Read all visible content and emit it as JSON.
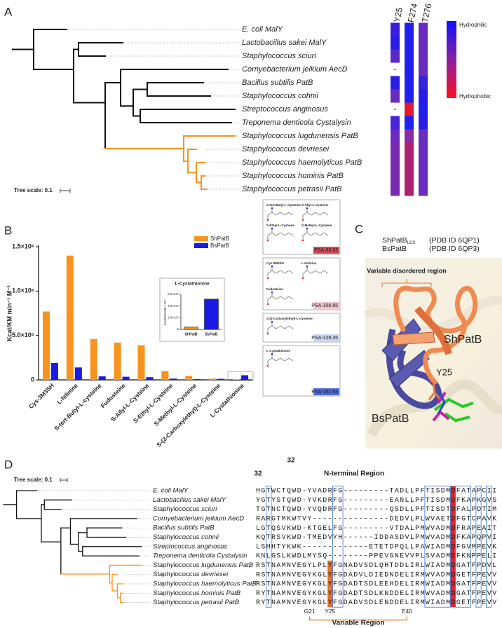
{
  "panel_labels": [
    "A",
    "B",
    "C",
    "D"
  ],
  "panel_a": {
    "species": [
      "E. coli MalY",
      "Lactobacillus sakei MalY",
      "Staphylococcus sciuri",
      "Cornyebacterium jeikium AecD",
      "Bacillus subtilis PatB",
      "Staphylococcus cohnii",
      "Streptococcus anginosus",
      "Treponema denticola Cystalysin",
      "Staphylococcus lugdunensis PatB",
      "Staphylococcus devriesei",
      "Staphylococcus haemolyticus PatB",
      "Staphylococcus hominis PatB",
      "Staphylococcus petrasii PatB"
    ],
    "columns": [
      "Y25",
      "F274",
      "T276"
    ],
    "cells": [
      [
        "#3a1ee0",
        "#2020f0",
        "#6a2cc0"
      ],
      [
        "#2a1ce8",
        "#2020f0",
        "#6a2cc0"
      ],
      [
        "#5a28c8",
        "#2020f0",
        "#6a2cc0"
      ],
      [
        "-",
        "#2020f0",
        "#6a2cc0"
      ],
      [
        "#2a1ce8",
        "#2020f0",
        "#3424e0"
      ],
      [
        "#6a2cc0",
        "#2020f0",
        "#2a1ce8"
      ],
      [
        "-",
        "#e01a30",
        "#2020f0"
      ],
      [
        "#4a24d8",
        "#2020f0",
        "#2a1ce8"
      ],
      [
        "#6a2cc0",
        "#8a2aa0",
        "#6a2cc0"
      ],
      [
        "#7a2ab0",
        "#b02070",
        "#6a2cc0"
      ],
      [
        "#7a2ab0",
        "#b02070",
        "#6a2cc0"
      ],
      [
        "#7a2ab0",
        "#b02070",
        "#6a2cc0"
      ],
      [
        "#7a2ab0",
        "#b02070",
        "#6a2cc0"
      ]
    ],
    "colorbar": {
      "top": "Hydrophilic",
      "bottom": "Hydrophobic"
    },
    "tree_scale": "Tree scale: 0.1"
  },
  "chart_data": [
    {
      "type": "bar",
      "y_label": "Kcat/KM min⁻¹ M⁻¹",
      "categories": [
        "Cys-3M3SH",
        "L-felinine",
        "S-tert-Butyl-L-cysteine",
        "Fudosteine",
        "S-Allyl-L-Cysteine",
        "S-Ethyl-L-Cysteine",
        "S-Methyl-L-Cysteine",
        "S-(2-Carboxylethyl)-L-Cysteine",
        "L-Cystathionine"
      ],
      "series": [
        {
          "name": "ShPatB",
          "color": "#f7931e",
          "values": [
            770000,
            1400000,
            460000,
            420000,
            390000,
            100000,
            45000,
            15000,
            4500
          ]
        },
        {
          "name": "BsPatB",
          "color": "#1a1ae6",
          "values": [
            190000,
            140000,
            40000,
            35000,
            30000,
            15000,
            8000,
            12000,
            52000
          ]
        }
      ],
      "ylim": [
        0,
        1500000
      ],
      "yticks": [
        0,
        {
          "value": 500000,
          "label": "5.0×10⁵"
        },
        {
          "value": 1000000,
          "label": "1.0×10⁶"
        },
        {
          "value": 1500000,
          "label": "1.5×10⁶"
        }
      ]
    },
    {
      "type": "bar",
      "title": "L-Cystathionine",
      "y_label": "Kcat/KM min⁻¹ M⁻¹",
      "categories": [
        "ShPatB",
        "BsPatB"
      ],
      "values": [
        4500,
        52000
      ],
      "colors": [
        "#f7931e",
        "#1a1ae6"
      ],
      "ylim": [
        0,
        60000
      ],
      "yticks": [
        0,
        {
          "value": 20000,
          "label": "2.0×10⁴"
        },
        {
          "value": 40000,
          "label": "4.0×10⁴"
        },
        {
          "value": 60000,
          "label": "6.0×10⁴"
        }
      ]
    }
  ],
  "structures": [
    {
      "names": [
        "S-tert-Butyl-L-Cysteine",
        "S-Allyl-L-Cysteine",
        "S-Ethyl-L-Cysteine",
        "S-Methyl-L-Cysteine"
      ],
      "psa": "PSA-88.62",
      "color": "#d84a58"
    },
    {
      "names": [
        "Cys-3M3SH",
        "L-Felinine",
        "Fudosteine"
      ],
      "psa": "PSA-108.85",
      "color": "#f0c4cc"
    },
    {
      "names": [
        "S-(2-Carboxylethyl)-L-Cysteine"
      ],
      "psa": "PSA-129.35",
      "color": "#c8d6f2"
    },
    {
      "names": [
        "L-Cystathionine"
      ],
      "psa": "PSA-151.94",
      "color": "#4a68d0"
    }
  ],
  "panel_c": {
    "legend": [
      {
        "name": "ShPatB",
        "sub": "LCS",
        "pdb": "(PDB ID 6QP1)",
        "color": "#f08a50"
      },
      {
        "name": "BsPatB",
        "pdb": "(PDB ID 6QP3)",
        "color": "#4a4aa0"
      }
    ],
    "region": "Variable disordered region",
    "labels": {
      "sh": "ShPatB",
      "bs": "BsPatB",
      "residue": "Y25"
    }
  },
  "panel_d": {
    "tree_scale": "Tree scale: 0.1",
    "species": [
      "E. coli MalY",
      "Lactobacillus sakei MalY",
      "Staphylococcus sciuri",
      "Cornyebacterium jeikium AecD",
      "Bacillus subtilis PatB",
      "Staphylococcus cohnii",
      "Streptococcus anginosus",
      "Treponema denticola Cystalysin",
      "Staphylococcus lugdunensis PatB",
      "Staphylococcus devriesei",
      "Staphylococcus haemolyticus PatB",
      "Staphylococcus hominis PatB",
      "Staphylococcus petrasii PatB"
    ],
    "sequences": [
      "HGTWCTQWD-YVADRFG---------TADLLPFTISDMDFATAPCII",
      "YGTYSTQWD-YVKDRFG---------EANLLPFTISDMDFKAPKGVS",
      "TGTNCTQWD-YVQDRFG---------QSDLLPFTISDTDFALPDTIM",
      "RARGTMKWTVY---------------DEDVLPLWVAETDFGTCPAVK",
      "LGTQSVKWD-KTGELFG---------VTDALPMWVADMDFRAPEAIT",
      "KQTRSVKWD-TMEDVYH------IDDASDVLPMWVADMDFKAPQPVI",
      "LSHHTYKWK-------------ETETDPQLLPAWIADMDFGVMPEVK",
      "KNLGSLKWDLMYSQ--------PPEVGNEVVPLSVADMEFKNPPELI",
      "RSTNAMNVEGYLPLYFGNADVSDLQHTDDLIRLWIADMDGATFPDVL",
      "RSTNAMNVEGYKGLYFGDADVLDIEDNDELIRMWVADMDGETFPEVV",
      "RSTNAMNVEGYKGLYFGDADTSDLEEHDELIRMWIADMDGATFPEVV",
      "RYTNAMNVEGYKGLYFGDADTSDLKNDDELIRMWVADMDGATFPEVV",
      "RYTNAMNVEGYKGLYFGDADVSDLENDDELIRMWIADMDGETFPEVV"
    ],
    "position_labels": [
      "32",
      "32"
    ],
    "region_title": "N-terminal Region",
    "residues": [
      "G21",
      "Y25",
      "E40"
    ],
    "variable": "Variable Region"
  }
}
